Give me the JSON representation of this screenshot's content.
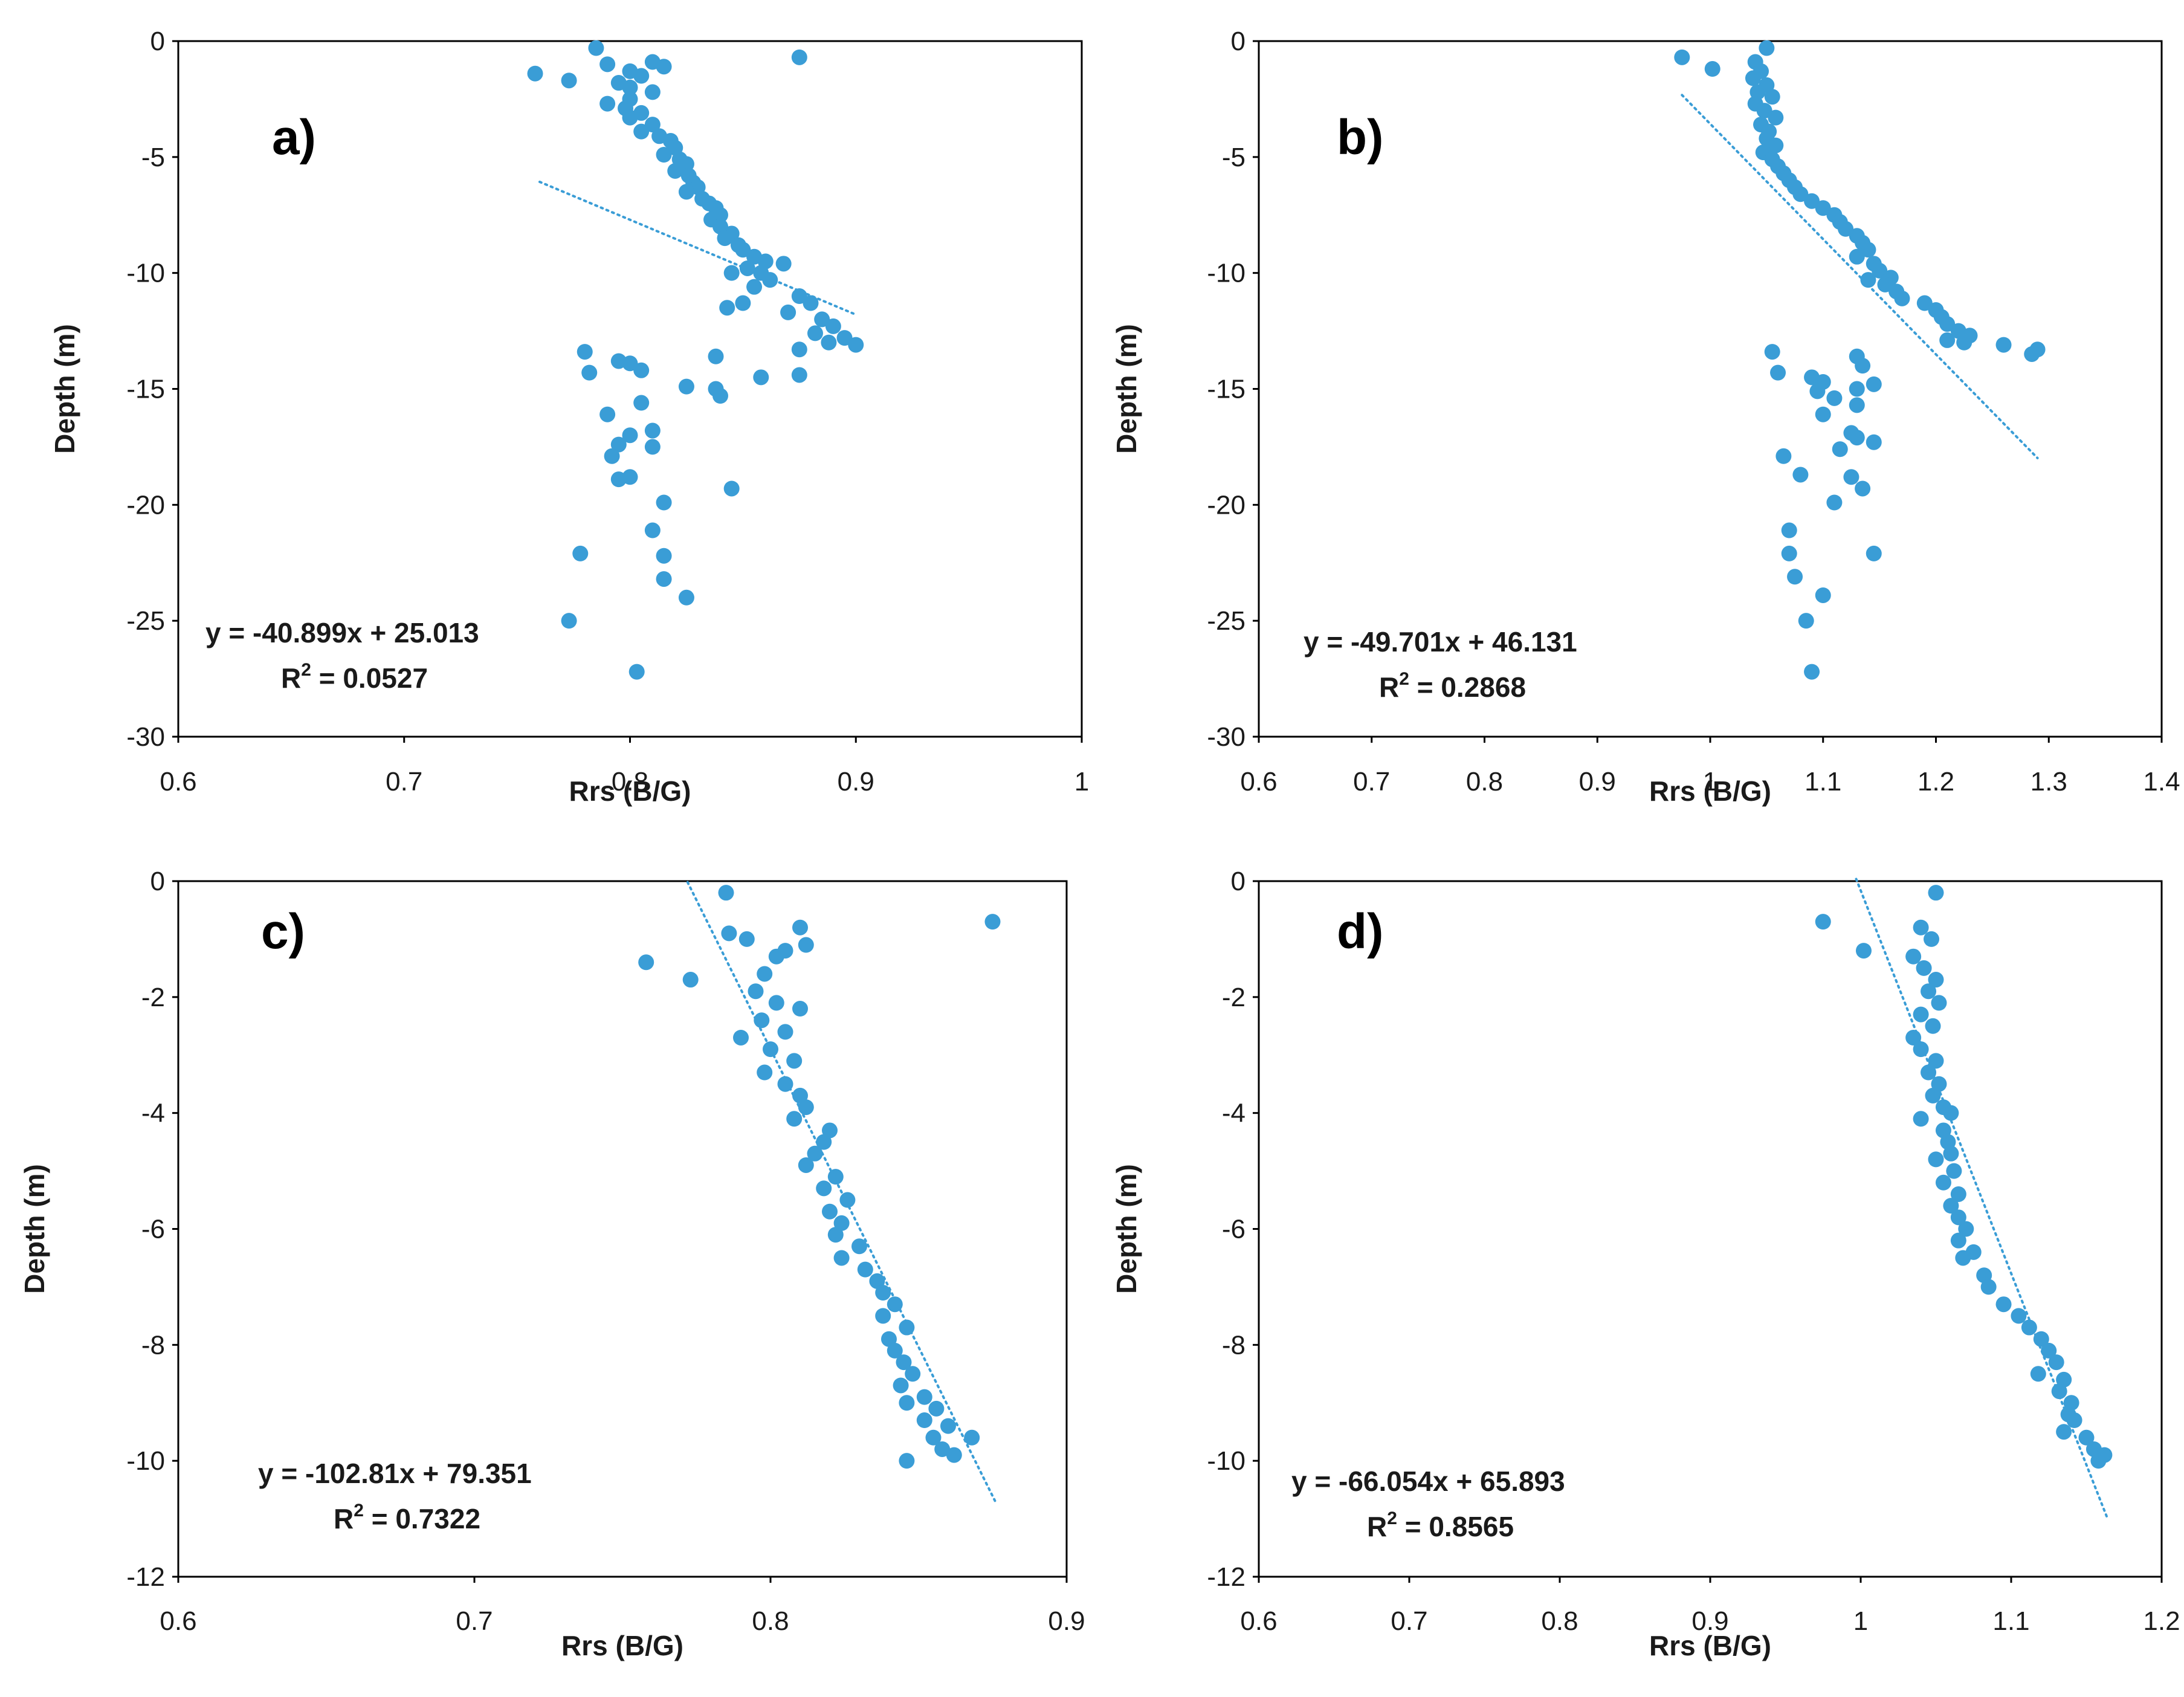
{
  "colors": {
    "point": "#3a9dd6",
    "trendline": "#3a9dd6",
    "axis": "#000000",
    "text": "#1a1a1a"
  },
  "chart_data": [
    {
      "type": "scatter",
      "panel_label": "a)",
      "xlabel": "Rrs (B/G)",
      "ylabel": "Depth (m)",
      "xlim": [
        0.6,
        1.0
      ],
      "ylim": [
        -30,
        0
      ],
      "xticks": [
        "0.6",
        "0.7",
        "0.8",
        "0.9",
        "1"
      ],
      "yticks": [
        "0",
        "-5",
        "-10",
        "-15",
        "-20",
        "-25",
        "-30"
      ],
      "equation": "y = -40.899x + 25.013",
      "r2_label": "R",
      "r2_sup": "2",
      "r2_value": " = 0.0527",
      "trendline": {
        "slope": -40.899,
        "intercept": 25.013,
        "x_range": [
          0.76,
          0.9
        ]
      },
      "points": [
        [
          0.785,
          -0.3
        ],
        [
          0.875,
          -0.7
        ],
        [
          0.79,
          -1.0
        ],
        [
          0.81,
          -0.9
        ],
        [
          0.815,
          -1.1
        ],
        [
          0.758,
          -1.4
        ],
        [
          0.773,
          -1.7
        ],
        [
          0.8,
          -1.3
        ],
        [
          0.805,
          -1.5
        ],
        [
          0.795,
          -1.8
        ],
        [
          0.8,
          -2.0
        ],
        [
          0.81,
          -2.2
        ],
        [
          0.8,
          -2.5
        ],
        [
          0.79,
          -2.7
        ],
        [
          0.798,
          -2.9
        ],
        [
          0.805,
          -3.1
        ],
        [
          0.8,
          -3.3
        ],
        [
          0.81,
          -3.6
        ],
        [
          0.805,
          -3.9
        ],
        [
          0.813,
          -4.1
        ],
        [
          0.818,
          -4.3
        ],
        [
          0.82,
          -4.6
        ],
        [
          0.815,
          -4.9
        ],
        [
          0.822,
          -5.1
        ],
        [
          0.825,
          -5.3
        ],
        [
          0.82,
          -5.6
        ],
        [
          0.826,
          -5.8
        ],
        [
          0.828,
          -6.1
        ],
        [
          0.83,
          -6.3
        ],
        [
          0.825,
          -6.5
        ],
        [
          0.832,
          -6.8
        ],
        [
          0.835,
          -7.0
        ],
        [
          0.838,
          -7.2
        ],
        [
          0.84,
          -7.5
        ],
        [
          0.836,
          -7.7
        ],
        [
          0.84,
          -8.0
        ],
        [
          0.845,
          -8.3
        ],
        [
          0.842,
          -8.5
        ],
        [
          0.848,
          -8.8
        ],
        [
          0.85,
          -9.0
        ],
        [
          0.855,
          -9.3
        ],
        [
          0.86,
          -9.5
        ],
        [
          0.852,
          -9.8
        ],
        [
          0.858,
          -10.0
        ],
        [
          0.862,
          -10.3
        ],
        [
          0.855,
          -10.6
        ],
        [
          0.845,
          -10.0
        ],
        [
          0.868,
          -9.6
        ],
        [
          0.875,
          -11.0
        ],
        [
          0.88,
          -11.3
        ],
        [
          0.85,
          -11.3
        ],
        [
          0.843,
          -11.5
        ],
        [
          0.87,
          -11.7
        ],
        [
          0.885,
          -12.0
        ],
        [
          0.89,
          -12.3
        ],
        [
          0.882,
          -12.6
        ],
        [
          0.895,
          -12.8
        ],
        [
          0.9,
          -13.1
        ],
        [
          0.875,
          -13.3
        ],
        [
          0.888,
          -13.0
        ],
        [
          0.838,
          -13.6
        ],
        [
          0.78,
          -13.4
        ],
        [
          0.795,
          -13.8
        ],
        [
          0.8,
          -13.9
        ],
        [
          0.805,
          -14.2
        ],
        [
          0.782,
          -14.3
        ],
        [
          0.825,
          -14.9
        ],
        [
          0.838,
          -15.0
        ],
        [
          0.84,
          -15.3
        ],
        [
          0.858,
          -14.5
        ],
        [
          0.875,
          -14.4
        ],
        [
          0.805,
          -15.6
        ],
        [
          0.79,
          -16.1
        ],
        [
          0.81,
          -16.8
        ],
        [
          0.8,
          -17.0
        ],
        [
          0.795,
          -17.4
        ],
        [
          0.81,
          -17.5
        ],
        [
          0.792,
          -17.9
        ],
        [
          0.8,
          -18.8
        ],
        [
          0.795,
          -18.9
        ],
        [
          0.845,
          -19.3
        ],
        [
          0.815,
          -19.9
        ],
        [
          0.81,
          -21.1
        ],
        [
          0.815,
          -22.2
        ],
        [
          0.778,
          -22.1
        ],
        [
          0.815,
          -23.2
        ],
        [
          0.825,
          -24.0
        ],
        [
          0.773,
          -25.0
        ],
        [
          0.803,
          -27.2
        ]
      ]
    },
    {
      "type": "scatter",
      "panel_label": "b)",
      "xlabel": "Rrs (B/G)",
      "ylabel": "Depth (m)",
      "xlim": [
        0.6,
        1.4
      ],
      "ylim": [
        -30,
        0
      ],
      "xticks": [
        "0.6",
        "0.7",
        "0.8",
        "0.9",
        "1",
        "1.1",
        "1.2",
        "1.3",
        "1.4"
      ],
      "yticks": [
        "0",
        "-5",
        "-10",
        "-15",
        "-20",
        "-25",
        "-30"
      ],
      "equation": "y = -49.701x + 46.131",
      "r2_label": "R",
      "r2_sup": "2",
      "r2_value": " = 0.2868",
      "trendline": {
        "slope": -49.701,
        "intercept": 46.131,
        "x_range": [
          0.975,
          1.29
        ]
      },
      "points": [
        [
          1.05,
          -0.3
        ],
        [
          0.975,
          -0.7
        ],
        [
          1.002,
          -1.2
        ],
        [
          1.04,
          -0.9
        ],
        [
          1.045,
          -1.3
        ],
        [
          1.038,
          -1.6
        ],
        [
          1.05,
          -1.9
        ],
        [
          1.042,
          -2.2
        ],
        [
          1.055,
          -2.4
        ],
        [
          1.04,
          -2.7
        ],
        [
          1.048,
          -3.0
        ],
        [
          1.058,
          -3.3
        ],
        [
          1.045,
          -3.6
        ],
        [
          1.052,
          -3.9
        ],
        [
          1.05,
          -4.2
        ],
        [
          1.058,
          -4.5
        ],
        [
          1.047,
          -4.8
        ],
        [
          1.055,
          -5.1
        ],
        [
          1.06,
          -5.4
        ],
        [
          1.065,
          -5.7
        ],
        [
          1.07,
          -6.0
        ],
        [
          1.075,
          -6.3
        ],
        [
          1.08,
          -6.6
        ],
        [
          1.09,
          -6.9
        ],
        [
          1.1,
          -7.2
        ],
        [
          1.11,
          -7.5
        ],
        [
          1.115,
          -7.8
        ],
        [
          1.12,
          -8.1
        ],
        [
          1.13,
          -8.4
        ],
        [
          1.135,
          -8.7
        ],
        [
          1.14,
          -9.0
        ],
        [
          1.13,
          -9.3
        ],
        [
          1.145,
          -9.6
        ],
        [
          1.15,
          -9.9
        ],
        [
          1.16,
          -10.2
        ],
        [
          1.155,
          -10.5
        ],
        [
          1.14,
          -10.3
        ],
        [
          1.165,
          -10.8
        ],
        [
          1.17,
          -11.1
        ],
        [
          1.19,
          -11.3
        ],
        [
          1.2,
          -11.6
        ],
        [
          1.205,
          -11.9
        ],
        [
          1.21,
          -12.2
        ],
        [
          1.22,
          -12.5
        ],
        [
          1.23,
          -12.7
        ],
        [
          1.21,
          -12.9
        ],
        [
          1.225,
          -13.0
        ],
        [
          1.26,
          -13.1
        ],
        [
          1.285,
          -13.5
        ],
        [
          1.29,
          -13.3
        ],
        [
          1.055,
          -13.4
        ],
        [
          1.13,
          -13.6
        ],
        [
          1.135,
          -14.0
        ],
        [
          1.06,
          -14.3
        ],
        [
          1.09,
          -14.5
        ],
        [
          1.1,
          -14.7
        ],
        [
          1.145,
          -14.8
        ],
        [
          1.13,
          -15.0
        ],
        [
          1.095,
          -15.1
        ],
        [
          1.11,
          -15.4
        ],
        [
          1.13,
          -15.7
        ],
        [
          1.1,
          -16.1
        ],
        [
          1.125,
          -16.9
        ],
        [
          1.13,
          -17.1
        ],
        [
          1.145,
          -17.3
        ],
        [
          1.065,
          -17.9
        ],
        [
          1.115,
          -17.6
        ],
        [
          1.08,
          -18.7
        ],
        [
          1.125,
          -18.8
        ],
        [
          1.135,
          -19.3
        ],
        [
          1.11,
          -19.9
        ],
        [
          1.07,
          -21.1
        ],
        [
          1.07,
          -22.1
        ],
        [
          1.145,
          -22.1
        ],
        [
          1.075,
          -23.1
        ],
        [
          1.1,
          -23.9
        ],
        [
          1.085,
          -25.0
        ],
        [
          1.09,
          -27.2
        ]
      ]
    },
    {
      "type": "scatter",
      "panel_label": "c)",
      "xlabel": "Rrs (B/G)",
      "ylabel": "Depth (m)",
      "xlim": [
        0.6,
        0.9
      ],
      "ylim": [
        -12,
        0
      ],
      "xticks": [
        "0.6",
        "0.7",
        "0.8",
        "0.9"
      ],
      "yticks": [
        "0",
        "-2",
        "-4",
        "-6",
        "-8",
        "-10",
        "-12"
      ],
      "equation": "y = -102.81x + 79.351",
      "r2_label": "R",
      "r2_sup": "2",
      "r2_value": " = 0.7322",
      "trendline": {
        "slope": -102.81,
        "intercept": 79.351,
        "x_range": [
          0.772,
          0.876
        ]
      },
      "points": [
        [
          0.785,
          -0.2
        ],
        [
          0.875,
          -0.7
        ],
        [
          0.786,
          -0.9
        ],
        [
          0.81,
          -0.8
        ],
        [
          0.792,
          -1.0
        ],
        [
          0.812,
          -1.1
        ],
        [
          0.758,
          -1.4
        ],
        [
          0.773,
          -1.7
        ],
        [
          0.802,
          -1.3
        ],
        [
          0.805,
          -1.2
        ],
        [
          0.798,
          -1.6
        ],
        [
          0.795,
          -1.9
        ],
        [
          0.802,
          -2.1
        ],
        [
          0.81,
          -2.2
        ],
        [
          0.797,
          -2.4
        ],
        [
          0.79,
          -2.7
        ],
        [
          0.805,
          -2.6
        ],
        [
          0.8,
          -2.9
        ],
        [
          0.808,
          -3.1
        ],
        [
          0.798,
          -3.3
        ],
        [
          0.805,
          -3.5
        ],
        [
          0.81,
          -3.7
        ],
        [
          0.812,
          -3.9
        ],
        [
          0.808,
          -4.1
        ],
        [
          0.82,
          -4.3
        ],
        [
          0.818,
          -4.5
        ],
        [
          0.815,
          -4.7
        ],
        [
          0.812,
          -4.9
        ],
        [
          0.822,
          -5.1
        ],
        [
          0.818,
          -5.3
        ],
        [
          0.826,
          -5.5
        ],
        [
          0.82,
          -5.7
        ],
        [
          0.824,
          -5.9
        ],
        [
          0.822,
          -6.1
        ],
        [
          0.83,
          -6.3
        ],
        [
          0.824,
          -6.5
        ],
        [
          0.832,
          -6.7
        ],
        [
          0.836,
          -6.9
        ],
        [
          0.838,
          -7.1
        ],
        [
          0.842,
          -7.3
        ],
        [
          0.838,
          -7.5
        ],
        [
          0.846,
          -7.7
        ],
        [
          0.84,
          -7.9
        ],
        [
          0.842,
          -8.1
        ],
        [
          0.845,
          -8.3
        ],
        [
          0.848,
          -8.5
        ],
        [
          0.844,
          -8.7
        ],
        [
          0.852,
          -8.9
        ],
        [
          0.846,
          -9.0
        ],
        [
          0.856,
          -9.1
        ],
        [
          0.852,
          -9.3
        ],
        [
          0.86,
          -9.4
        ],
        [
          0.855,
          -9.6
        ],
        [
          0.868,
          -9.6
        ],
        [
          0.858,
          -9.8
        ],
        [
          0.862,
          -9.9
        ],
        [
          0.846,
          -10.0
        ]
      ]
    },
    {
      "type": "scatter",
      "panel_label": "d)",
      "xlabel": "Rrs (B/G)",
      "ylabel": "Depth (m)",
      "xlim": [
        0.6,
        1.2
      ],
      "ylim": [
        -12,
        0
      ],
      "xticks": [
        "0.6",
        "0.7",
        "0.8",
        "0.9",
        "1",
        "1.1",
        "1.2"
      ],
      "yticks": [
        "0",
        "-2",
        "-4",
        "-6",
        "-8",
        "-10",
        "-12"
      ],
      "equation": "y = -66.054x + 65.893",
      "r2_label": "R",
      "r2_sup": "2",
      "r2_value": " = 0.8565",
      "trendline": {
        "slope": -66.054,
        "intercept": 65.893,
        "x_range": [
          0.997,
          1.164
        ]
      },
      "points": [
        [
          1.05,
          -0.2
        ],
        [
          0.975,
          -0.7
        ],
        [
          1.002,
          -1.2
        ],
        [
          1.04,
          -0.8
        ],
        [
          1.047,
          -1.0
        ],
        [
          1.035,
          -1.3
        ],
        [
          1.042,
          -1.5
        ],
        [
          1.05,
          -1.7
        ],
        [
          1.045,
          -1.9
        ],
        [
          1.052,
          -2.1
        ],
        [
          1.04,
          -2.3
        ],
        [
          1.048,
          -2.5
        ],
        [
          1.035,
          -2.7
        ],
        [
          1.04,
          -2.9
        ],
        [
          1.05,
          -3.1
        ],
        [
          1.045,
          -3.3
        ],
        [
          1.052,
          -3.5
        ],
        [
          1.048,
          -3.7
        ],
        [
          1.055,
          -3.9
        ],
        [
          1.04,
          -4.1
        ],
        [
          1.06,
          -4.0
        ],
        [
          1.055,
          -4.3
        ],
        [
          1.058,
          -4.5
        ],
        [
          1.06,
          -4.7
        ],
        [
          1.05,
          -4.8
        ],
        [
          1.062,
          -5.0
        ],
        [
          1.055,
          -5.2
        ],
        [
          1.065,
          -5.4
        ],
        [
          1.06,
          -5.6
        ],
        [
          1.065,
          -5.8
        ],
        [
          1.07,
          -6.0
        ],
        [
          1.065,
          -6.2
        ],
        [
          1.075,
          -6.4
        ],
        [
          1.068,
          -6.5
        ],
        [
          1.082,
          -6.8
        ],
        [
          1.085,
          -7.0
        ],
        [
          1.095,
          -7.3
        ],
        [
          1.105,
          -7.5
        ],
        [
          1.112,
          -7.7
        ],
        [
          1.12,
          -7.9
        ],
        [
          1.125,
          -8.1
        ],
        [
          1.13,
          -8.3
        ],
        [
          1.118,
          -8.5
        ],
        [
          1.135,
          -8.6
        ],
        [
          1.132,
          -8.8
        ],
        [
          1.14,
          -9.0
        ],
        [
          1.138,
          -9.2
        ],
        [
          1.142,
          -9.3
        ],
        [
          1.135,
          -9.5
        ],
        [
          1.15,
          -9.6
        ],
        [
          1.155,
          -9.8
        ],
        [
          1.162,
          -9.9
        ],
        [
          1.158,
          -10.0
        ]
      ]
    }
  ]
}
